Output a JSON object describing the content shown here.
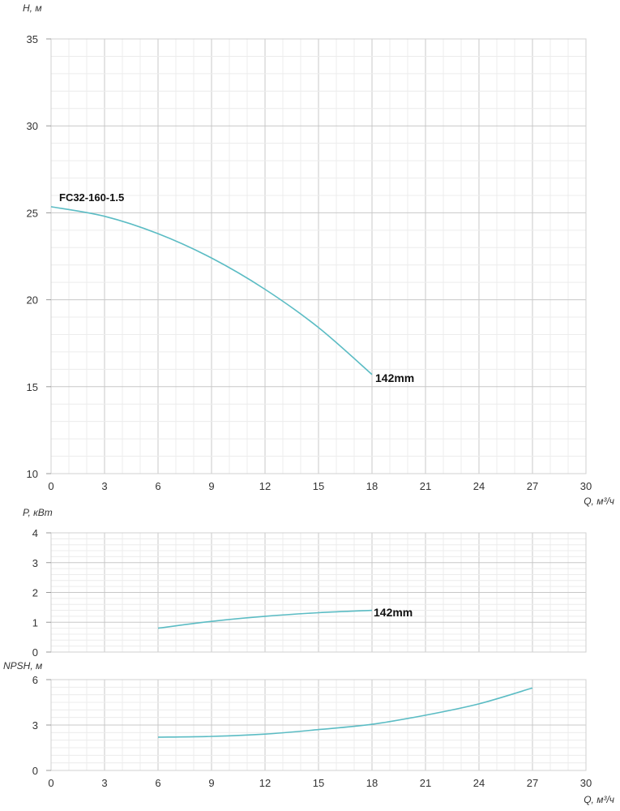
{
  "chart_data": [
    {
      "type": "line",
      "id": "head",
      "ylabel": "H, м",
      "xlabel": "Q, м³/ч",
      "xlim": [
        0,
        30
      ],
      "ylim": [
        10,
        35
      ],
      "xticks": [
        0,
        3,
        6,
        9,
        12,
        15,
        18,
        21,
        24,
        27,
        30
      ],
      "yticks": [
        10,
        15,
        20,
        25,
        30,
        35
      ],
      "grid": true,
      "annotations": [
        "FC32-160-1.5",
        "142mm"
      ],
      "series": [
        {
          "name": "142mm",
          "color": "#5bbcc4",
          "x": [
            0,
            3,
            6,
            9,
            12,
            15,
            18
          ],
          "y": [
            25.35,
            24.8,
            23.8,
            22.4,
            20.6,
            18.4,
            15.7
          ]
        }
      ]
    },
    {
      "type": "line",
      "id": "power",
      "ylabel": "P, кВт",
      "xlim": [
        0,
        30
      ],
      "ylim": [
        0,
        4
      ],
      "yticks": [
        0,
        1,
        2,
        3,
        4
      ],
      "grid": true,
      "annotations": [
        "142mm"
      ],
      "series": [
        {
          "name": "142mm",
          "color": "#5bbcc4",
          "x": [
            6,
            9,
            12,
            15,
            18
          ],
          "y": [
            0.8,
            1.03,
            1.2,
            1.32,
            1.4
          ]
        }
      ]
    },
    {
      "type": "line",
      "id": "npsh",
      "ylabel": "NPSH, м",
      "xlabel": "Q, м³/ч",
      "xlim": [
        0,
        30
      ],
      "ylim": [
        0,
        6
      ],
      "xticks": [
        0,
        3,
        6,
        9,
        12,
        15,
        18,
        21,
        24,
        27,
        30
      ],
      "yticks": [
        0,
        3,
        6
      ],
      "grid": true,
      "series": [
        {
          "name": "NPSH",
          "color": "#5bbcc4",
          "x": [
            6,
            9,
            12,
            15,
            18,
            21,
            24,
            27
          ],
          "y": [
            2.2,
            2.25,
            2.4,
            2.7,
            3.05,
            3.65,
            4.4,
            5.45
          ]
        }
      ]
    }
  ]
}
